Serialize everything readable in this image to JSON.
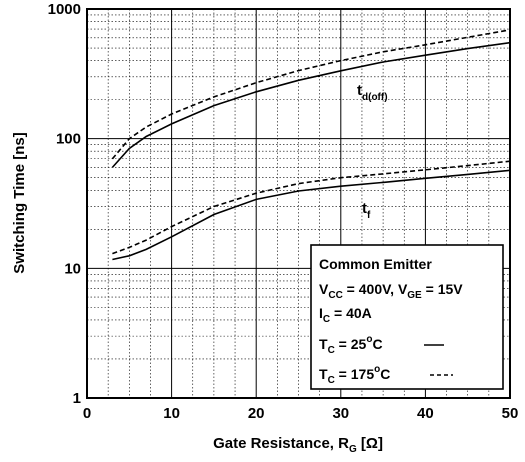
{
  "chart_data": {
    "type": "line",
    "xlabel": "Gate Resistance, R",
    "xlabel_sub": "G",
    "xlabel_unit": " [Ω]",
    "ylabel": "Switching Time [ns]",
    "xlim": [
      0,
      50
    ],
    "ylim": [
      1,
      1000
    ],
    "yscale": "log",
    "grid": true,
    "x_ticks": [
      0,
      10,
      20,
      30,
      40,
      50
    ],
    "x_tick_labels": [
      "0",
      "10",
      "20",
      "30",
      "40",
      "50"
    ],
    "y_ticks": [
      1,
      10,
      100,
      1000
    ],
    "y_tick_labels": [
      "1",
      "10",
      "100",
      "1000"
    ],
    "curve_labels": [
      {
        "main": "t",
        "sub": "d(off)"
      },
      {
        "main": "t",
        "sub": "f"
      }
    ],
    "series": [
      {
        "curve": "td(off)",
        "condition": "Tc = 25°C",
        "style": "solid",
        "x": [
          3,
          5,
          7,
          10,
          15,
          20,
          25,
          30,
          35,
          40,
          45,
          50
        ],
        "y": [
          60,
          84,
          104,
          130,
          180,
          230,
          282,
          334,
          390,
          440,
          495,
          550
        ]
      },
      {
        "curve": "td(off)",
        "condition": "Tc = 175°C",
        "style": "dashed",
        "x": [
          3,
          5,
          7,
          10,
          15,
          20,
          25,
          30,
          35,
          40,
          45,
          50
        ],
        "y": [
          70,
          100,
          123,
          155,
          210,
          270,
          335,
          400,
          468,
          530,
          605,
          690
        ]
      },
      {
        "curve": "tf",
        "condition": "Tc = 25°C",
        "style": "solid",
        "x": [
          3,
          5,
          7,
          10,
          15,
          20,
          25,
          30,
          35,
          40,
          45,
          50
        ],
        "y": [
          11.7,
          12.5,
          14.0,
          17.5,
          26.0,
          34.0,
          39.5,
          43.0,
          46.0,
          49.5,
          53.0,
          57.0
        ]
      },
      {
        "curve": "tf",
        "condition": "Tc = 175°C",
        "style": "dashed",
        "x": [
          3,
          5,
          7,
          10,
          15,
          20,
          25,
          30,
          35,
          40,
          45,
          50
        ],
        "y": [
          13.0,
          14.5,
          16.5,
          21.0,
          30.0,
          38.0,
          45.0,
          50.0,
          53.5,
          57.5,
          62.0,
          67.0
        ]
      }
    ],
    "legend": {
      "title": "Common Emitter",
      "lines": [
        [
          {
            "t": "V"
          },
          {
            "t": "CC",
            "sub": true
          },
          {
            "t": " = 400V, V"
          },
          {
            "t": "GE",
            "sub": true
          },
          {
            "t": " = 15V"
          }
        ],
        [
          {
            "t": "I"
          },
          {
            "t": "C",
            "sub": true
          },
          {
            "t": " = 40A"
          }
        ],
        [
          {
            "t": "T"
          },
          {
            "t": "C",
            "sub": true
          },
          {
            "t": " = 25"
          },
          {
            "t": "o",
            "sup": true
          },
          {
            "t": "C"
          }
        ],
        [
          {
            "t": "T"
          },
          {
            "t": "C",
            "sub": true
          },
          {
            "t": " = 175"
          },
          {
            "t": "o",
            "sup": true
          },
          {
            "t": "C"
          }
        ]
      ],
      "placement": "bottom-right"
    }
  }
}
